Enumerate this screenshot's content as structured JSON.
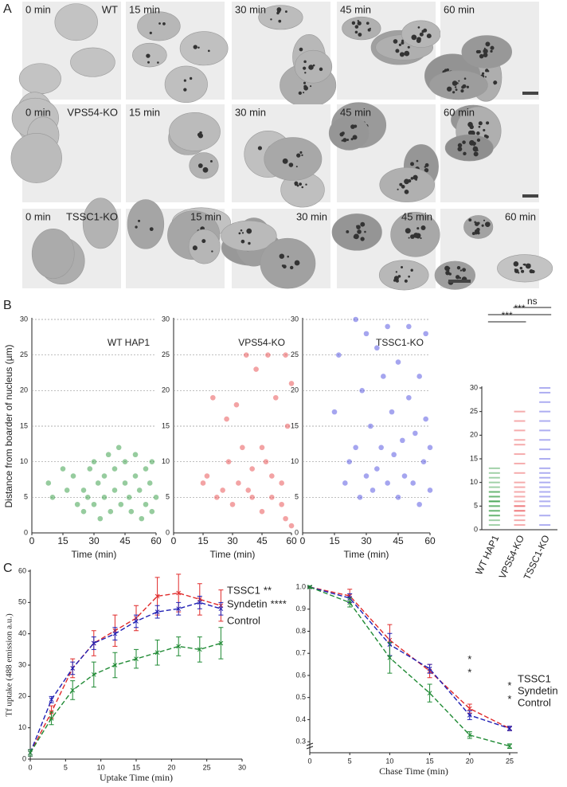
{
  "panel_labels": [
    "A",
    "B",
    "C"
  ],
  "micrographs": [
    [
      [
        "0 min",
        "WT"
      ],
      [
        "15 min"
      ],
      [
        "30 min"
      ],
      [
        "45 min"
      ],
      [
        "60 min"
      ]
    ],
    [
      [
        "0 min",
        "VPS54-KO"
      ],
      [
        "15 min"
      ],
      [
        "30 min"
      ],
      [
        "45 min"
      ],
      [
        "60 min"
      ]
    ],
    [
      [
        "0 min",
        "TSSC1-KO"
      ],
      [
        "15 min"
      ],
      [
        "30 min"
      ],
      [
        "45 min"
      ],
      [
        "60 min"
      ]
    ]
  ],
  "chart_data": [
    {
      "type": "scatter",
      "title": "WT HAP1",
      "ylabel": "Distance from boarder of nucleus (µm)",
      "xlabel": "Time (min)",
      "color": "#2e9a3e",
      "xlim": [
        0,
        60
      ],
      "xticks": [
        0,
        15,
        30,
        45,
        60
      ],
      "ylim": [
        0,
        30
      ],
      "yticks": [
        0,
        5,
        10,
        15,
        20,
        25,
        30
      ],
      "grid": true,
      "x": [
        8,
        10,
        15,
        17,
        20,
        22,
        25,
        25,
        27,
        28,
        30,
        30,
        32,
        33,
        35,
        35,
        37,
        38,
        40,
        40,
        42,
        43,
        45,
        45,
        47,
        48,
        50,
        50,
        52,
        53,
        55,
        55,
        57,
        58,
        58,
        60
      ],
      "values": [
        7,
        5,
        9,
        6,
        8,
        4,
        6,
        3,
        5,
        9,
        10,
        4,
        7,
        2,
        8,
        5,
        11,
        3,
        9,
        6,
        12,
        4,
        7,
        10,
        5,
        3,
        8,
        11,
        6,
        2,
        9,
        4,
        7,
        10,
        3,
        5
      ]
    },
    {
      "type": "scatter",
      "title": "VPS54-KO",
      "xlabel": "Time (min)",
      "color": "#e8474a",
      "xlim": [
        0,
        60
      ],
      "xticks": [
        0,
        15,
        30,
        45,
        60
      ],
      "ylim": [
        0,
        30
      ],
      "yticks": [
        0,
        5,
        10,
        15,
        20,
        25,
        30
      ],
      "grid": true,
      "x": [
        15,
        17,
        20,
        22,
        25,
        27,
        28,
        30,
        32,
        33,
        35,
        37,
        38,
        40,
        40,
        42,
        45,
        45,
        47,
        48,
        50,
        50,
        52,
        55,
        55,
        57,
        57,
        58,
        60,
        60
      ],
      "values": [
        7,
        8,
        19,
        5,
        6,
        16,
        10,
        4,
        18,
        7,
        12,
        25,
        6,
        9,
        5,
        23,
        12,
        3,
        10,
        25,
        5,
        8,
        19,
        4,
        7,
        2,
        25,
        15,
        21,
        1
      ]
    },
    {
      "type": "scatter",
      "title": "TSSC1-KO",
      "xlabel": "Time (min)",
      "color": "#4b4be0",
      "xlim": [
        0,
        60
      ],
      "xticks": [
        0,
        15,
        30,
        45,
        60
      ],
      "ylim": [
        0,
        30
      ],
      "yticks": [
        0,
        5,
        10,
        15,
        20,
        25,
        30
      ],
      "grid": true,
      "x": [
        15,
        17,
        20,
        22,
        25,
        25,
        27,
        28,
        30,
        30,
        32,
        33,
        35,
        35,
        37,
        38,
        40,
        40,
        42,
        43,
        45,
        45,
        47,
        48,
        50,
        50,
        52,
        53,
        55,
        55,
        57,
        58,
        58,
        60,
        60
      ],
      "values": [
        17,
        25,
        7,
        10,
        30,
        12,
        5,
        20,
        28,
        8,
        15,
        6,
        26,
        9,
        12,
        22,
        29,
        7,
        17,
        11,
        5,
        24,
        13,
        8,
        29,
        19,
        7,
        14,
        22,
        4,
        10,
        28,
        16,
        6,
        12
      ]
    },
    {
      "type": "strip",
      "categories": [
        "WT HAP1",
        "VPS54-KO",
        "TSSC1-KO"
      ],
      "ylim": [
        0,
        30
      ],
      "yticks": [
        0,
        5,
        10,
        15,
        20,
        25,
        30
      ],
      "series": [
        {
          "color": "#2e9a3e",
          "values": [
            1,
            2,
            3,
            4,
            5,
            5,
            6,
            6,
            7,
            7,
            8,
            8,
            9,
            10,
            11,
            12,
            13,
            4,
            6,
            3
          ]
        },
        {
          "color": "#e8474a",
          "values": [
            1,
            2,
            3,
            4,
            5,
            6,
            7,
            8,
            9,
            10,
            12,
            14,
            16,
            18,
            19,
            21,
            23,
            25,
            5,
            4
          ]
        },
        {
          "color": "#4b4be0",
          "values": [
            1,
            3,
            5,
            7,
            9,
            11,
            13,
            15,
            17,
            19,
            21,
            23,
            25,
            27,
            29,
            30,
            6,
            8,
            12,
            10
          ]
        }
      ],
      "significance": [
        {
          "label": "ns",
          "between": [
            1,
            2
          ]
        },
        {
          "label": "***",
          "between": [
            0,
            2
          ]
        },
        {
          "label": "***",
          "between": [
            0,
            1
          ]
        }
      ]
    },
    {
      "type": "line",
      "xlabel": "Uptake Time (min)",
      "ylabel": "Tf uptake (488 emission a.u.)",
      "xlim": [
        0,
        30
      ],
      "xticks": [
        0,
        5,
        10,
        15,
        20,
        25,
        30
      ],
      "ylim": [
        0,
        60
      ],
      "yticks": [
        0,
        10,
        20,
        30,
        40,
        50,
        60
      ],
      "x": [
        0,
        3,
        6,
        9,
        12,
        15,
        18,
        21,
        24,
        27
      ],
      "series": [
        {
          "name": "TSSC1",
          "annotation": "**",
          "color": "#e02a2a",
          "label_color": "#e02a2a",
          "values": [
            2,
            15,
            29,
            37,
            41,
            45,
            52,
            53,
            51,
            49
          ],
          "errors": [
            1,
            2,
            3,
            4,
            5,
            4,
            6,
            6,
            5,
            5
          ]
        },
        {
          "name": "Syndetin",
          "annotation": "****",
          "color": "#1f1fb4",
          "label_color": "#2aa8d8",
          "values": [
            2,
            19,
            29,
            37,
            40,
            44,
            47,
            48,
            50,
            48
          ],
          "errors": [
            1,
            1,
            2,
            2,
            2,
            2,
            2,
            2,
            2,
            2
          ]
        },
        {
          "name": "Control",
          "color": "#1f8a34",
          "label_color": "#1f8a34",
          "values": [
            2,
            13,
            22,
            27,
            30,
            32,
            34,
            36,
            35,
            37
          ],
          "errors": [
            1,
            2,
            3,
            4,
            4,
            3,
            4,
            3,
            4,
            5
          ]
        }
      ]
    },
    {
      "type": "line",
      "xlabel": "Chase Time (min)",
      "axis_break": true,
      "xlim": [
        0,
        26
      ],
      "xticks": [
        0,
        5,
        10,
        15,
        20,
        25
      ],
      "ylim": [
        0.25,
        1.0
      ],
      "yticks": [
        0.3,
        0.4,
        0.5,
        0.6,
        0.7,
        0.8,
        0.9,
        {
          "value": 1,
          "label": "1.0"
        }
      ],
      "x": [
        0,
        5,
        10,
        15,
        20,
        25
      ],
      "series": [
        {
          "name": "TSSC1",
          "color": "#e02a2a",
          "label_color": "#e02a2a",
          "values": [
            1.0,
            0.96,
            0.76,
            0.62,
            0.45,
            0.36
          ],
          "errors": [
            0.005,
            0.03,
            0.07,
            0.03,
            0.02,
            0.01
          ]
        },
        {
          "name": "Syndetin",
          "color": "#1f1fb4",
          "label_color": "#2aa8d8",
          "values": [
            1.0,
            0.95,
            0.74,
            0.63,
            0.42,
            0.36
          ],
          "errors": [
            0.005,
            0.02,
            0.05,
            0.02,
            0.02,
            0.01
          ]
        },
        {
          "name": "Control",
          "color": "#1f8a34",
          "label_color": "#1f8a34",
          "values": [
            1.0,
            0.93,
            0.68,
            0.52,
            0.33,
            0.28
          ],
          "errors": [
            0.005,
            0.02,
            0.07,
            0.04,
            0.015,
            0.01
          ]
        }
      ],
      "annotations": [
        {
          "text": "*",
          "x": 20,
          "y": 0.67,
          "color": "#2aa8d8"
        },
        {
          "text": "*",
          "x": 20,
          "y": 0.61,
          "color": "#e02a2a"
        },
        {
          "text": "*",
          "x": 25,
          "y": 0.55,
          "color": "#2aa8d8"
        },
        {
          "text": "*",
          "x": 25,
          "y": 0.49,
          "color": "#e02a2a"
        }
      ]
    }
  ]
}
